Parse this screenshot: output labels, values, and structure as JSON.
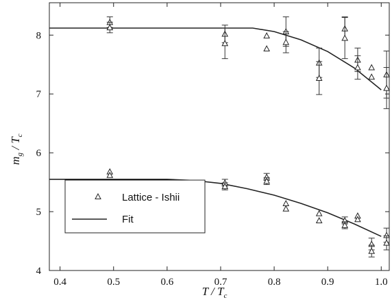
{
  "chart_data": {
    "type": "scatter",
    "xlabel_main": "T",
    "xlabel_den": "T",
    "xlabel_sub": "c",
    "ylabel_main": "m",
    "ylabel_sub1": "g",
    "ylabel_den": "T",
    "ylabel_sub2": "c",
    "xlim": [
      0.38,
      1.015
    ],
    "ylim": [
      4.0,
      8.55
    ],
    "xticks": [
      "0.4",
      "0.5",
      "0.6",
      "0.7",
      "0.8",
      "0.9",
      "1.0"
    ],
    "yticks": [
      "4",
      "5",
      "6",
      "7",
      "8"
    ],
    "grid": false,
    "legend_position": "bottom-left",
    "series": [
      {
        "name": "Lattice - Ishii",
        "kind": "points",
        "marker": "triangle-open",
        "points": [
          {
            "x": 0.493,
            "y": 8.22,
            "err": 0.09
          },
          {
            "x": 0.493,
            "y": 8.13,
            "err": 0.09
          },
          {
            "x": 0.708,
            "y": 8.02,
            "err": 0.15
          },
          {
            "x": 0.708,
            "y": 7.86,
            "err": 0.26
          },
          {
            "x": 0.786,
            "y": 7.99,
            "err": 0
          },
          {
            "x": 0.786,
            "y": 7.77,
            "err": 0
          },
          {
            "x": 0.822,
            "y": 8.06,
            "err": 0.25
          },
          {
            "x": 0.822,
            "y": 7.88,
            "err": 0.18
          },
          {
            "x": 0.884,
            "y": 7.53,
            "err": 0.25
          },
          {
            "x": 0.884,
            "y": 7.27,
            "err": 0.28
          },
          {
            "x": 0.932,
            "y": 8.11,
            "err": 0.2
          },
          {
            "x": 0.932,
            "y": 7.95,
            "err": 0.35
          },
          {
            "x": 0.956,
            "y": 7.58,
            "err": 0.2
          },
          {
            "x": 0.956,
            "y": 7.45,
            "err": 0.2
          },
          {
            "x": 0.982,
            "y": 7.45,
            "err": 0
          },
          {
            "x": 0.982,
            "y": 7.29,
            "err": 0
          },
          {
            "x": 1.01,
            "y": 7.33,
            "err": 0.4
          },
          {
            "x": 1.01,
            "y": 7.1,
            "err": 0.35
          },
          {
            "x": 0.493,
            "y": 5.68,
            "err": 0
          },
          {
            "x": 0.493,
            "y": 5.62,
            "err": 0
          },
          {
            "x": 0.708,
            "y": 5.49,
            "err": 0.06
          },
          {
            "x": 0.708,
            "y": 5.43,
            "err": 0.06
          },
          {
            "x": 0.786,
            "y": 5.59,
            "err": 0.06
          },
          {
            "x": 0.786,
            "y": 5.52,
            "err": 0.06
          },
          {
            "x": 0.822,
            "y": 5.14,
            "err": 0
          },
          {
            "x": 0.822,
            "y": 5.05,
            "err": 0
          },
          {
            "x": 0.884,
            "y": 4.97,
            "err": 0
          },
          {
            "x": 0.884,
            "y": 4.85,
            "err": 0
          },
          {
            "x": 0.932,
            "y": 4.85,
            "err": 0.06
          },
          {
            "x": 0.932,
            "y": 4.77,
            "err": 0.06
          },
          {
            "x": 0.956,
            "y": 4.93,
            "err": 0
          },
          {
            "x": 0.956,
            "y": 4.87,
            "err": 0
          },
          {
            "x": 0.982,
            "y": 4.45,
            "err": 0.1
          },
          {
            "x": 0.982,
            "y": 4.33,
            "err": 0.1
          },
          {
            "x": 1.01,
            "y": 4.6,
            "err": 0.12
          },
          {
            "x": 1.01,
            "y": 4.47,
            "err": 0.12
          }
        ]
      },
      {
        "name": "Fit",
        "kind": "lines",
        "curves": [
          {
            "x": [
              0.38,
              0.5,
              0.6,
              0.7,
              0.76,
              0.8,
              0.85,
              0.9,
              0.95,
              1.0
            ],
            "y": [
              8.12,
              8.12,
              8.12,
              8.12,
              8.12,
              8.06,
              7.92,
              7.72,
              7.44,
              7.07
            ]
          },
          {
            "x": [
              0.38,
              0.5,
              0.6,
              0.65,
              0.7,
              0.75,
              0.8,
              0.85,
              0.9,
              0.95,
              1.0
            ],
            "y": [
              5.55,
              5.55,
              5.55,
              5.53,
              5.48,
              5.39,
              5.28,
              5.14,
              4.98,
              4.79,
              4.58
            ]
          }
        ]
      }
    ]
  }
}
